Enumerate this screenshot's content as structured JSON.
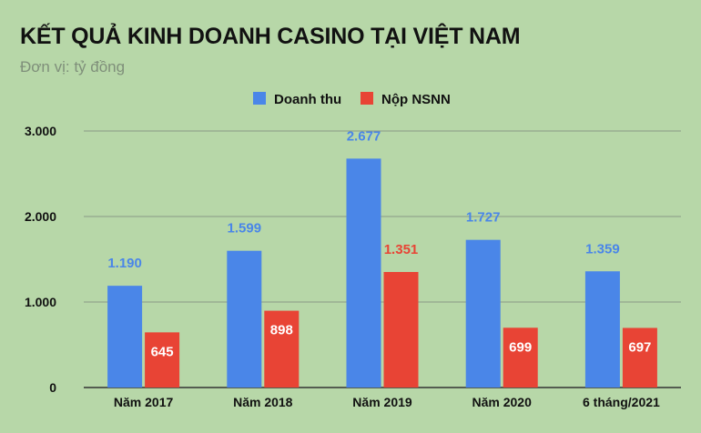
{
  "chart_data": {
    "type": "bar",
    "title": "KẾT QUẢ KINH DOANH CASINO TẠI VIỆT NAM",
    "subtitle": "Đơn vị: tỷ đồng",
    "categories": [
      "Năm 2017",
      "Năm 2018",
      "Năm 2019",
      "Năm 2020",
      "6 tháng/2021"
    ],
    "series": [
      {
        "name": "Doanh thu",
        "color": "#4a86e8",
        "label_color": "#4a86e8",
        "values": [
          1190,
          1599,
          2677,
          1727,
          1359
        ],
        "labels": [
          "1.190",
          "1.599",
          "2.677",
          "1.727",
          "1.359"
        ],
        "label_position": "above"
      },
      {
        "name": "Nộp NSNN",
        "color": "#e84435",
        "values": [
          645,
          898,
          1351,
          699,
          697
        ],
        "labels": [
          "645",
          "898",
          "1.351",
          "699",
          "697"
        ],
        "label_position": "inside",
        "label_colors": [
          "#ffffff",
          "#ffffff",
          "#e84435",
          "#ffffff",
          "#ffffff"
        ]
      }
    ],
    "y_ticks": [
      0,
      1000,
      2000,
      3000
    ],
    "y_tick_labels": [
      "0",
      "1.000",
      "2.000",
      "3.000"
    ],
    "ylim": [
      0,
      3000
    ],
    "grid": true,
    "legend_position": "top-center"
  }
}
